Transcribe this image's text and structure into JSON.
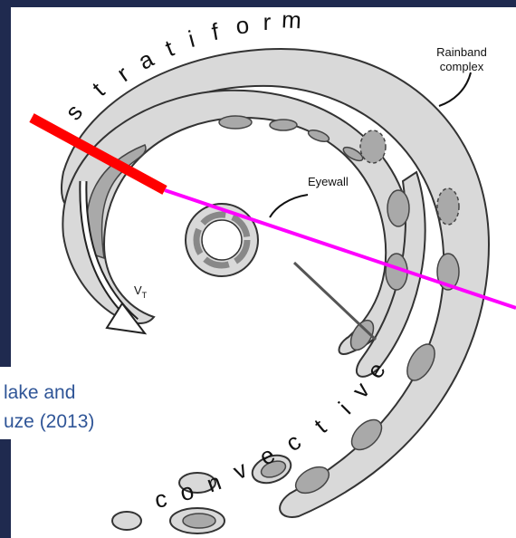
{
  "stratiform": [
    "s",
    "t",
    "r",
    "a",
    "t",
    "i",
    "f",
    "o",
    "r",
    "m"
  ],
  "convective": [
    "c",
    "o",
    "n",
    "v",
    "e",
    "c",
    "t",
    "i",
    "v",
    "e"
  ],
  "rainband_label": [
    "Rainband",
    "complex"
  ],
  "eyewall_label": "Eyewall",
  "vt_label": "V",
  "vt_subscript": "T",
  "citation": [
    "lake and",
    "uze (2013)"
  ]
}
